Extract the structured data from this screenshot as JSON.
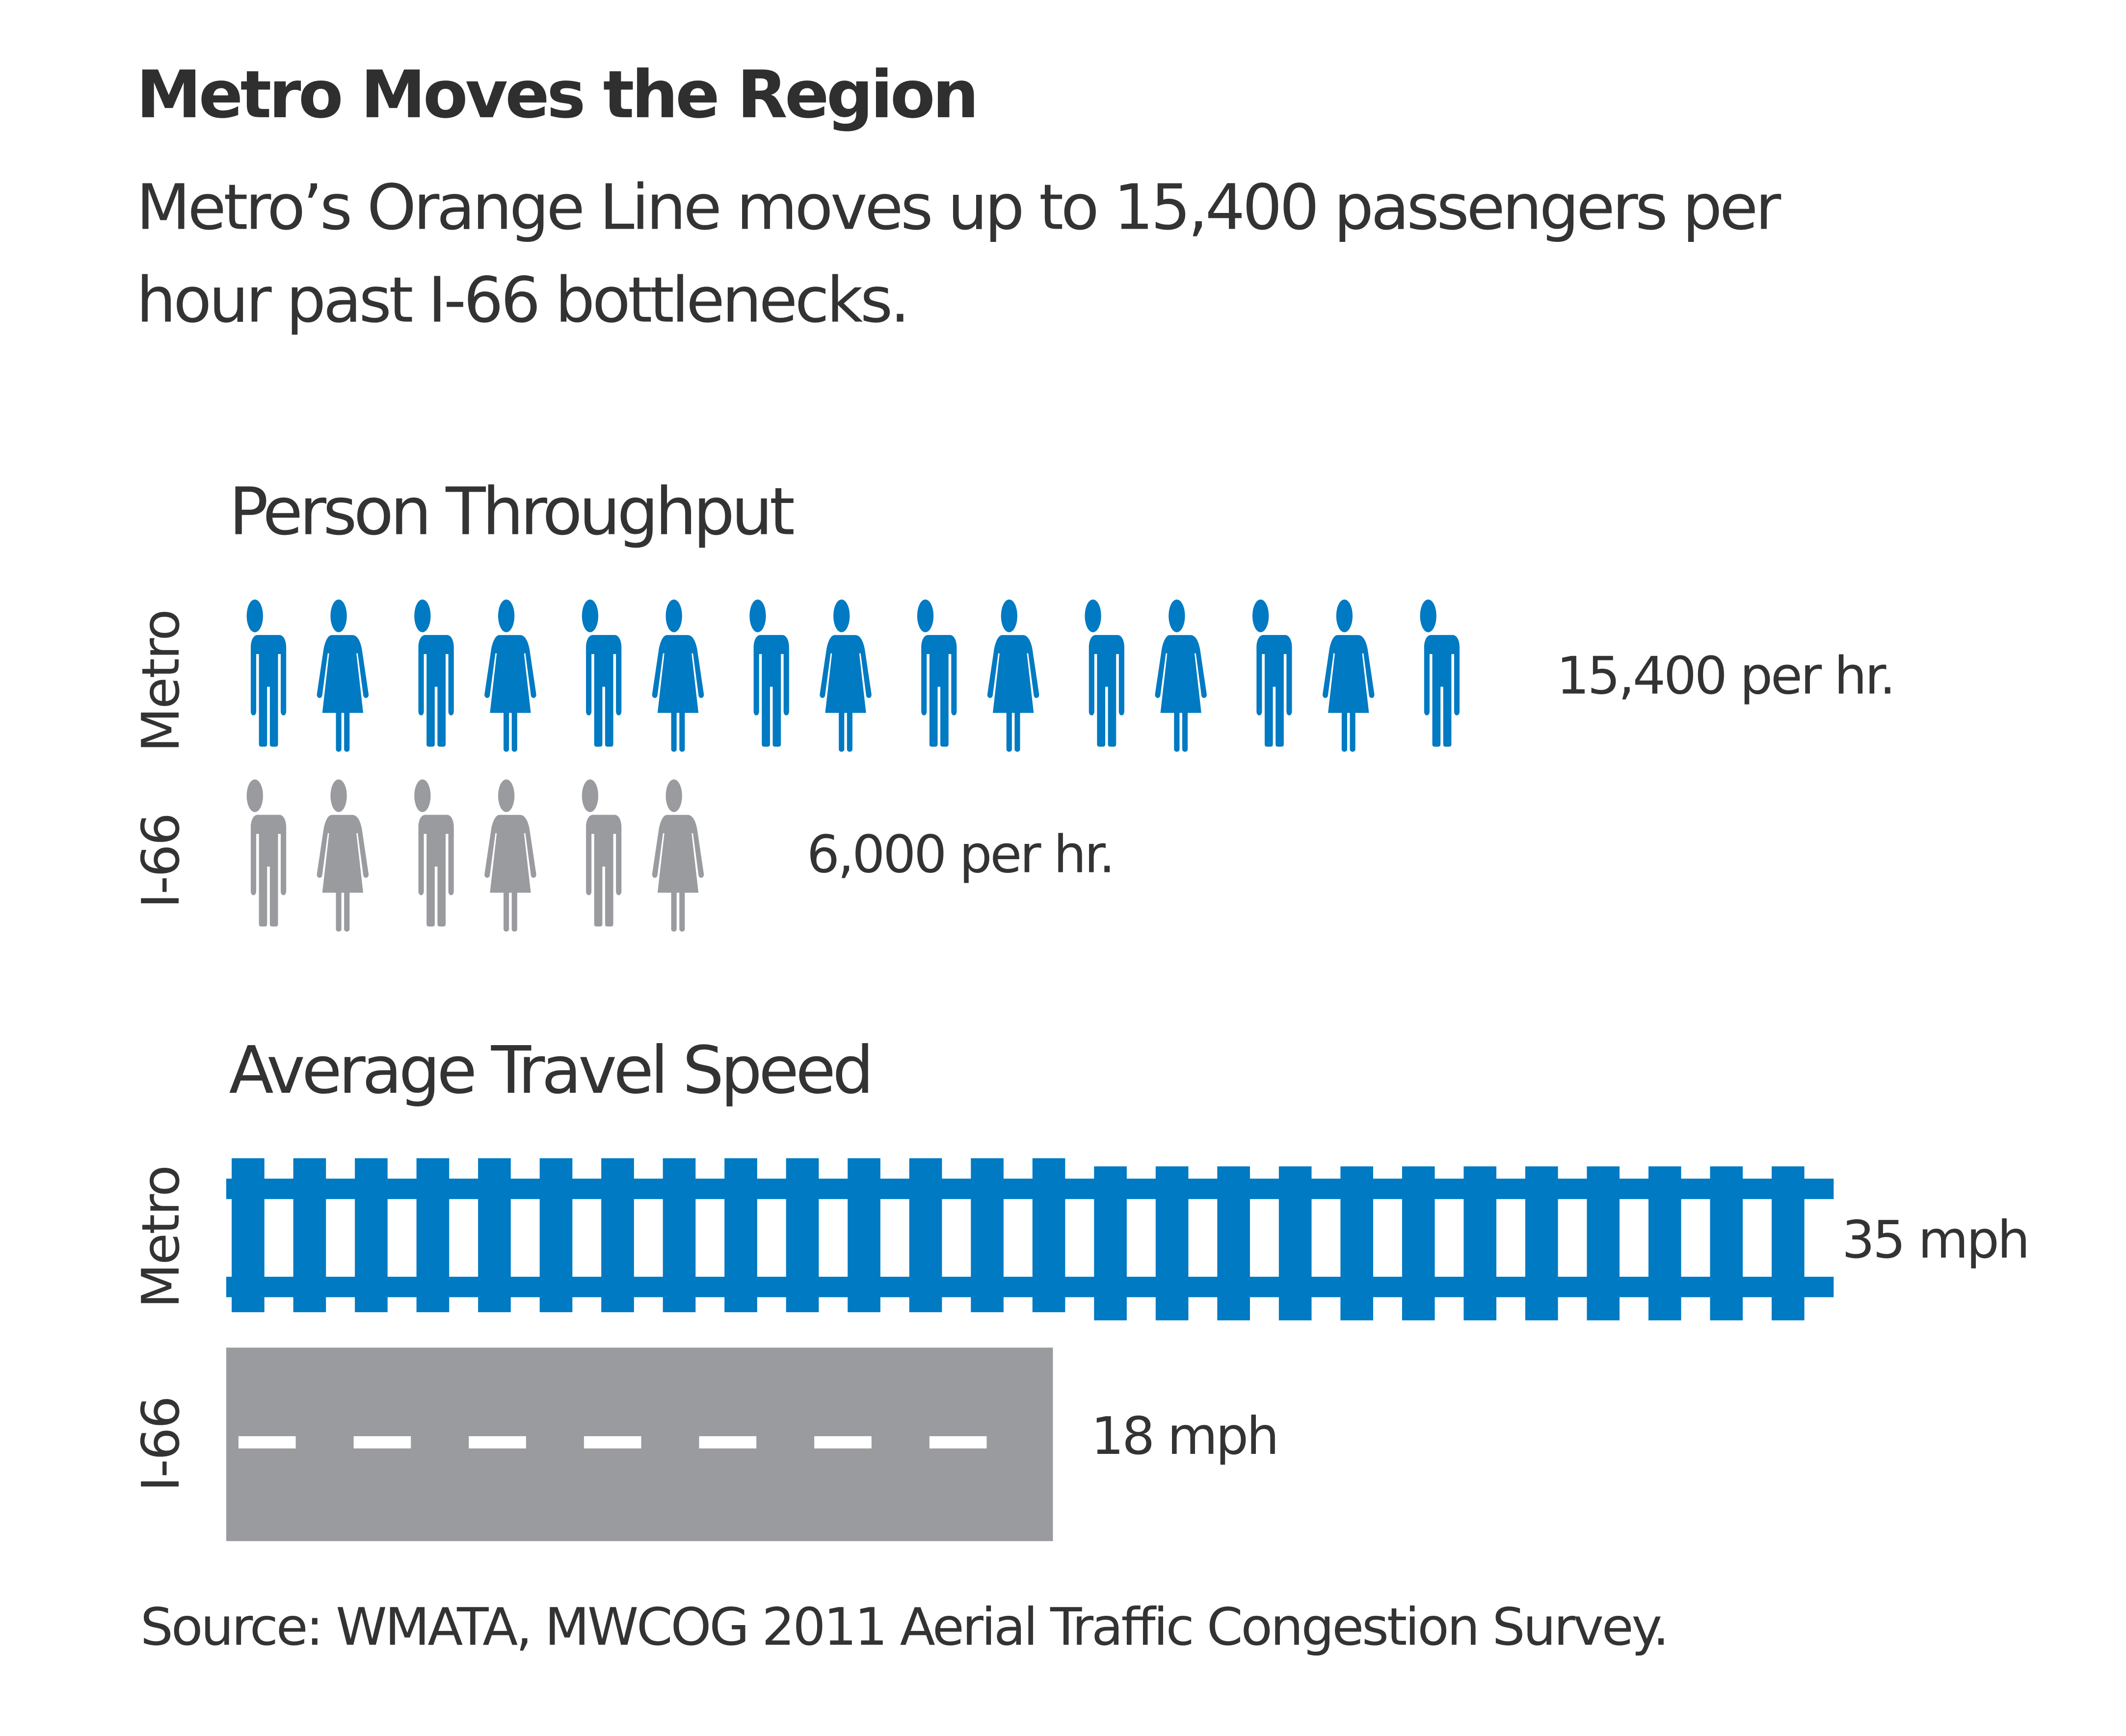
{
  "title": "Metro Moves the Region",
  "subtitle": [
    "Metro’s Orange Line moves up to 15,400 passengers per",
    "hour past I-66 bottlenecks."
  ],
  "source": "Source: WMATA, MWCOG 2011 Aerial Traffic Congestion Survey.",
  "colors": {
    "metro": "#007ac2",
    "i66": "#9a9b9f",
    "text": "#333333"
  },
  "chart_data": [
    {
      "type": "bar",
      "style": "pictogram",
      "title": "Person Throughput",
      "categories": [
        "Metro",
        "I-66"
      ],
      "values": [
        15400,
        6000
      ],
      "units_per_icon": 1000,
      "value_labels": [
        "15,400 per hr.",
        "6,000 per hr."
      ]
    },
    {
      "type": "bar",
      "style": "track-vs-road",
      "title": "Average Travel Speed",
      "categories": [
        "Metro",
        "I-66"
      ],
      "values": [
        35,
        18
      ],
      "value_labels": [
        "35 mph",
        "18 mph"
      ]
    }
  ]
}
